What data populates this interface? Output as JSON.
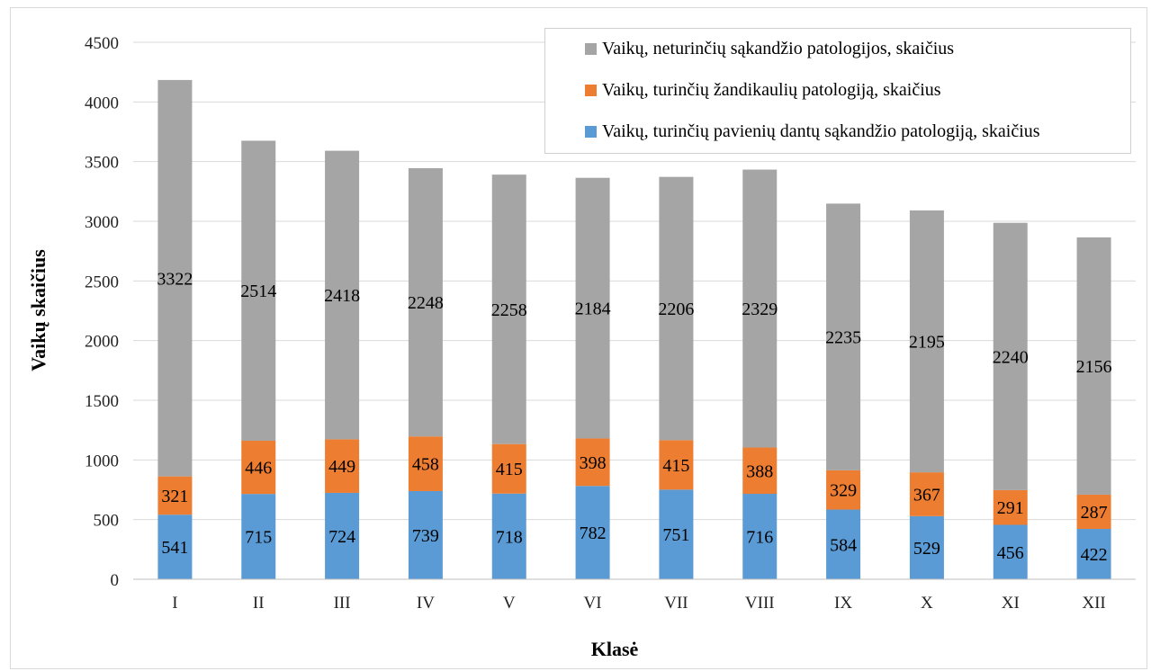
{
  "chart_data": {
    "type": "bar",
    "stacked": true,
    "title": "",
    "xlabel": "Klasė",
    "ylabel": "Vaikų skaičius",
    "ylim": [
      0,
      4500
    ],
    "yticks": [
      0,
      500,
      1000,
      1500,
      2000,
      2500,
      3000,
      3500,
      4000,
      4500
    ],
    "grid": true,
    "legend_position": "top-right",
    "categories": [
      "I",
      "II",
      "III",
      "IV",
      "V",
      "VI",
      "VII",
      "VIII",
      "IX",
      "X",
      "XI",
      "XII"
    ],
    "series": [
      {
        "name": "Vaikų, turinčių pavienių dantų sąkandžio patologiją, skaičius",
        "color": "#5b9bd5",
        "values": [
          541,
          715,
          724,
          739,
          718,
          782,
          751,
          716,
          584,
          529,
          456,
          422
        ]
      },
      {
        "name": "Vaikų, turinčių žandikaulių  patologiją, skaičius",
        "color": "#ed7d31",
        "values": [
          321,
          446,
          449,
          458,
          415,
          398,
          415,
          388,
          329,
          367,
          291,
          287
        ]
      },
      {
        "name": "Vaikų, neturinčių sąkandžio patologijos, skaičius",
        "color": "#a5a5a5",
        "values": [
          3322,
          2514,
          2418,
          2248,
          2258,
          2184,
          2206,
          2329,
          2235,
          2195,
          2240,
          2156
        ]
      }
    ]
  }
}
